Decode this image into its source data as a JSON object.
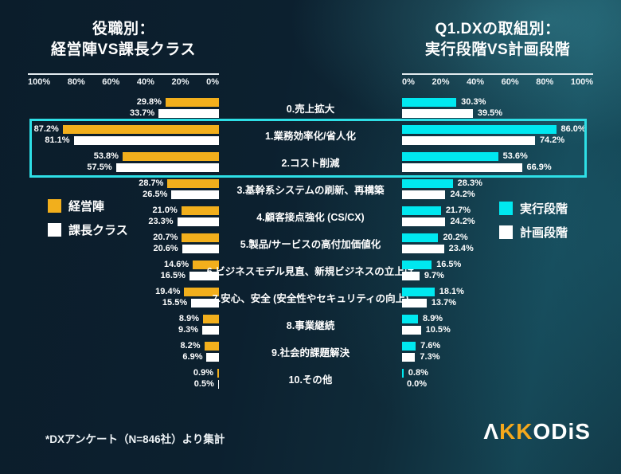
{
  "page": {
    "footnote": "*DXアンケート（N=846社）より集計",
    "logo": {
      "part1": "Λ",
      "part2": "KK",
      "part3": "ODiS"
    }
  },
  "left_chart": {
    "title1": "役職別：",
    "title2": "経営陣VS課長クラス",
    "axis_ticks": [
      "100%",
      "80%",
      "60%",
      "40%",
      "20%",
      "0%"
    ],
    "legend": [
      {
        "id": "management",
        "label": "経営陣",
        "color": "#F2AF1C"
      },
      {
        "id": "section-chief",
        "label": "課長クラス",
        "color": "#FFFFFF"
      }
    ]
  },
  "right_chart": {
    "title1": "Q1.DXの取組別：",
    "title2": "実行段階VS計画段階",
    "axis_ticks": [
      "0%",
      "20%",
      "40%",
      "60%",
      "80%",
      "100%"
    ],
    "legend": [
      {
        "id": "execution",
        "label": "実行段階",
        "color": "#00E8F0"
      },
      {
        "id": "planning",
        "label": "計画段階",
        "color": "#FFFFFF"
      }
    ]
  },
  "chart_data": {
    "type": "bar",
    "orientation": "horizontal",
    "xlim": [
      0,
      100
    ],
    "unit": "%",
    "categories": [
      "0.売上拡大",
      "1.業務効率化/省人化",
      "2.コスト削減",
      "3.基幹系システムの刷新、再構築",
      "4.顧客接点強化 (CS/CX)",
      "5.製品/サービスの高付加価値化",
      "6.ビジネスモデル見直、新規ビジネスの立上げ",
      "7.安心、安全 (安全性やセキュリティの向上)",
      "8.事業継続",
      "9.社会的課題解決",
      "10.その他"
    ],
    "series": [
      {
        "id": "management",
        "name": "経営陣",
        "chart": "left",
        "color": "#F2AF1C",
        "values": [
          29.8,
          87.2,
          53.8,
          28.7,
          21.0,
          20.7,
          14.6,
          19.4,
          8.9,
          8.2,
          0.9
        ]
      },
      {
        "id": "section-chief",
        "name": "課長クラス",
        "chart": "left",
        "color": "#FFFFFF",
        "values": [
          33.7,
          81.1,
          57.5,
          26.5,
          23.3,
          20.6,
          16.5,
          15.5,
          9.3,
          6.9,
          0.5
        ]
      },
      {
        "id": "execution",
        "name": "実行段階",
        "chart": "right",
        "color": "#00E8F0",
        "values": [
          30.3,
          86.0,
          53.6,
          28.3,
          21.7,
          20.2,
          16.5,
          18.1,
          8.9,
          7.6,
          0.8
        ]
      },
      {
        "id": "planning",
        "name": "計画段階",
        "chart": "right",
        "color": "#FFFFFF",
        "values": [
          39.5,
          74.2,
          66.9,
          24.2,
          24.2,
          23.4,
          9.7,
          13.7,
          10.5,
          7.3,
          0.0
        ]
      }
    ],
    "highlighted_categories": [
      "1.業務効率化/省人化",
      "2.コスト削減"
    ],
    "highlight_rows": [
      1,
      2
    ],
    "highlight_color": "#2EDFE6"
  }
}
